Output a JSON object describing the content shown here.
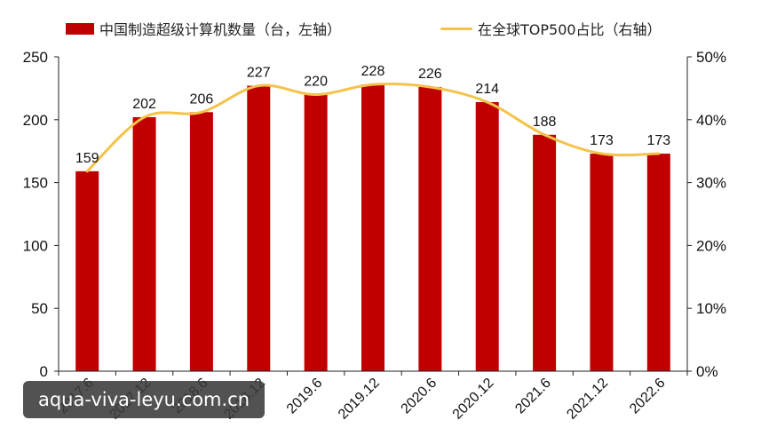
{
  "legend": {
    "bar_label": "中国制造超级计算机数量（台，左轴）",
    "line_label": "在全球TOP500占比（右轴）"
  },
  "colors": {
    "bar": "#c00000",
    "line": "#f5c24a",
    "axis": "#222222",
    "text": "#111111"
  },
  "watermark": {
    "text": "aqua-viva-leyu.com.cn"
  },
  "chart_data": {
    "type": "bar",
    "categories": [
      "2017.6",
      "2017.12",
      "2018.6",
      "2018.12",
      "2019.6",
      "2019.12",
      "2020.6",
      "2020.12",
      "2021.6",
      "2021.12",
      "2022.6"
    ],
    "series": [
      {
        "name": "中国制造超级计算机数量（台，左轴）",
        "type": "bar",
        "axis": "left",
        "values": [
          159,
          202,
          206,
          227,
          220,
          228,
          226,
          214,
          188,
          173,
          173
        ]
      },
      {
        "name": "在全球TOP500占比（右轴）",
        "type": "line",
        "axis": "right",
        "values": [
          0.318,
          0.404,
          0.412,
          0.454,
          0.44,
          0.456,
          0.452,
          0.428,
          0.376,
          0.346,
          0.346
        ]
      }
    ],
    "ylim_left": [
      0,
      250
    ],
    "yticks_left": [
      "0",
      "50",
      "100",
      "150",
      "200",
      "250"
    ],
    "ylim_right": [
      0,
      0.5
    ],
    "yticks_right": [
      "0%",
      "10%",
      "20%",
      "30%",
      "40%",
      "50%"
    ],
    "data_labels": [
      "159",
      "202",
      "206",
      "227",
      "220",
      "228",
      "226",
      "214",
      "188",
      "173",
      "173"
    ],
    "grid": false,
    "legend_position": "top"
  }
}
